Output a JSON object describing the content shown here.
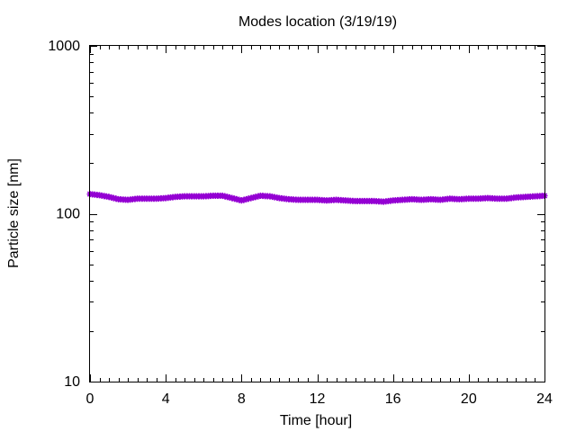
{
  "chart_data": {
    "type": "scatter",
    "title": "Modes location (3/19/19)",
    "xlabel": "Time [hour]",
    "ylabel": "Particle size [nm]",
    "xlim": [
      0,
      24
    ],
    "ylim": [
      10,
      1000
    ],
    "yscale": "log",
    "xticks": [
      0,
      4,
      8,
      12,
      16,
      20,
      24
    ],
    "xtick_labels": [
      "0",
      "4",
      "8",
      "12",
      "16",
      "20",
      "24"
    ],
    "yticks": [
      10,
      100,
      1000
    ],
    "ytick_labels": [
      "10",
      "100",
      "1000"
    ],
    "grid": false,
    "legend": "none",
    "marker_color": "#9400d3",
    "series": [
      {
        "marker": "star",
        "x": [
          0,
          0.5,
          1,
          1.5,
          2,
          2.5,
          3,
          3.5,
          4,
          4.5,
          5,
          5.5,
          6,
          6.5,
          7,
          7.5,
          8,
          8.5,
          9,
          9.5,
          10,
          10.5,
          11,
          11.5,
          12,
          12.5,
          13,
          13.5,
          14,
          14.5,
          15,
          15.5,
          16,
          16.5,
          17,
          17.5,
          18,
          18.5,
          19,
          19.5,
          20,
          20.5,
          21,
          21.5,
          22,
          22.5,
          23,
          23.5,
          24
        ],
        "y": [
          131,
          129,
          126,
          122,
          121,
          123,
          123,
          123,
          124,
          126,
          127,
          127,
          127,
          128,
          128,
          124,
          120,
          124,
          128,
          127,
          124,
          122,
          121,
          121,
          121,
          120,
          121,
          120,
          119,
          119,
          119,
          118,
          120,
          121,
          122,
          121,
          122,
          121,
          123,
          122,
          123,
          123,
          124,
          123,
          123,
          125,
          126,
          127,
          128
        ]
      }
    ]
  }
}
